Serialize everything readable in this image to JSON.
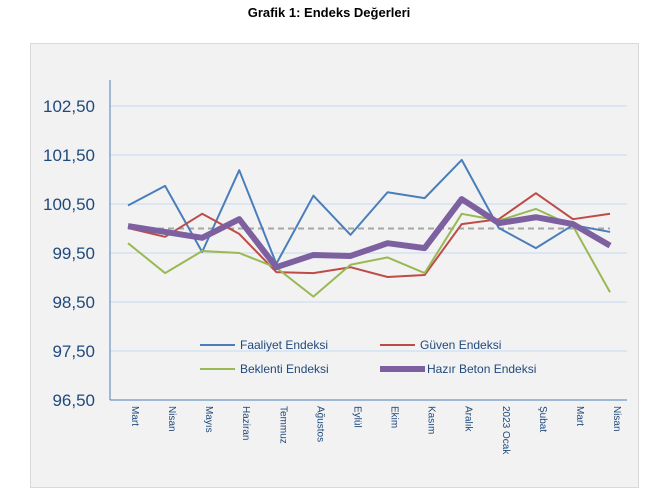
{
  "title": "Grafik 1: Endeks Değerleri",
  "chart_data": {
    "type": "line",
    "title": "Grafik 1: Endeks Değerleri",
    "categories": [
      "Mart",
      "Nisan",
      "Mayıs",
      "Haziran",
      "Temmuz",
      "Ağustos",
      "Eylül",
      "Ekim",
      "Kasım",
      "Aralık",
      "2023 Ocak",
      "Şubat",
      "Mart",
      "Nisan"
    ],
    "ylim": [
      96.5,
      102.5
    ],
    "yticks": [
      "96,50",
      "97,50",
      "98,50",
      "99,50",
      "100,50",
      "101,50",
      "102,50"
    ],
    "ytick_values": [
      96.5,
      97.5,
      98.5,
      99.5,
      100.5,
      101.5,
      102.5
    ],
    "grid": true,
    "reference_line": 100,
    "legend_placement": "bottom-center",
    "series": [
      {
        "name": "Faaliyet Endeksi",
        "color": "#4a7ebb",
        "width": 2,
        "values": [
          100.47,
          100.87,
          99.52,
          101.19,
          99.28,
          100.67,
          99.87,
          100.74,
          100.62,
          101.4,
          100.01,
          99.6,
          100.07,
          99.93
        ]
      },
      {
        "name": "Güven Endeksi",
        "color": "#be4b48",
        "width": 2,
        "values": [
          100.01,
          99.83,
          100.3,
          99.89,
          99.11,
          99.09,
          99.21,
          99.01,
          99.05,
          100.09,
          100.19,
          100.72,
          100.19,
          100.3
        ]
      },
      {
        "name": "Beklenti Endeksi",
        "color": "#98b954",
        "width": 2,
        "values": [
          99.7,
          99.09,
          99.54,
          99.5,
          99.2,
          98.61,
          99.26,
          99.41,
          99.09,
          100.3,
          100.16,
          100.4,
          100.05,
          98.7
        ]
      },
      {
        "name": "Hazır Beton Endeksi",
        "color": "#7d60a0",
        "width": 6,
        "values": [
          100.05,
          99.93,
          99.81,
          100.19,
          99.21,
          99.46,
          99.44,
          99.7,
          99.6,
          100.6,
          100.11,
          100.23,
          100.09,
          99.65
        ]
      }
    ]
  }
}
